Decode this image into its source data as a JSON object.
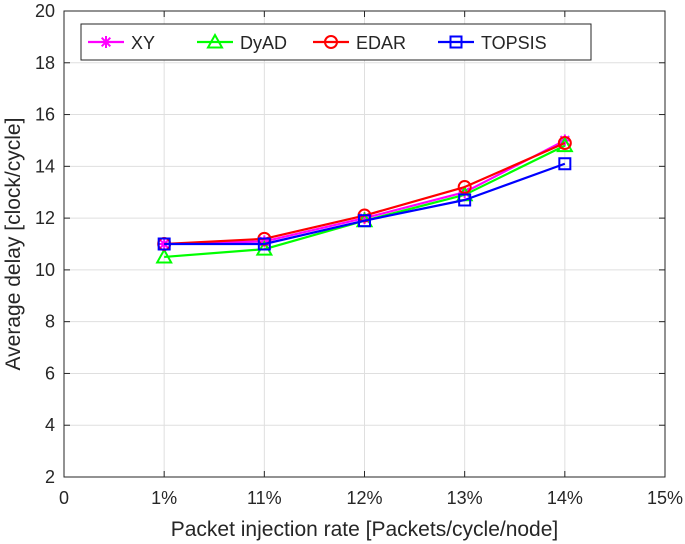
{
  "chart_data": {
    "type": "line",
    "title": "",
    "xlabel": "Packet injection rate [Packets/cycle/node]",
    "ylabel": "Average delay [clock/cycle]",
    "x_tick_labels": [
      "0",
      "1%",
      "11%",
      "12%",
      "13%",
      "14%",
      "15%"
    ],
    "x_positions": [
      1,
      2,
      3,
      4,
      5
    ],
    "xlim": [
      0,
      6
    ],
    "ylim": [
      2,
      20
    ],
    "y_ticks": [
      2,
      4,
      6,
      8,
      10,
      12,
      14,
      16,
      18,
      20
    ],
    "grid": true,
    "legend_position": "top-left",
    "series": [
      {
        "name": "XY",
        "color": "#ff00ff",
        "marker": "asterisk",
        "values": [
          11.0,
          11.1,
          12.0,
          13.0,
          15.0
        ]
      },
      {
        "name": "DyAD",
        "color": "#00ff00",
        "marker": "triangle",
        "values": [
          10.5,
          10.8,
          11.9,
          12.9,
          14.8
        ]
      },
      {
        "name": "EDAR",
        "color": "#ff0000",
        "marker": "circle",
        "values": [
          11.0,
          11.2,
          12.1,
          13.2,
          14.9
        ]
      },
      {
        "name": "TOPSIS",
        "color": "#0000ff",
        "marker": "square",
        "values": [
          11.0,
          11.0,
          11.9,
          12.7,
          14.1
        ]
      }
    ]
  }
}
